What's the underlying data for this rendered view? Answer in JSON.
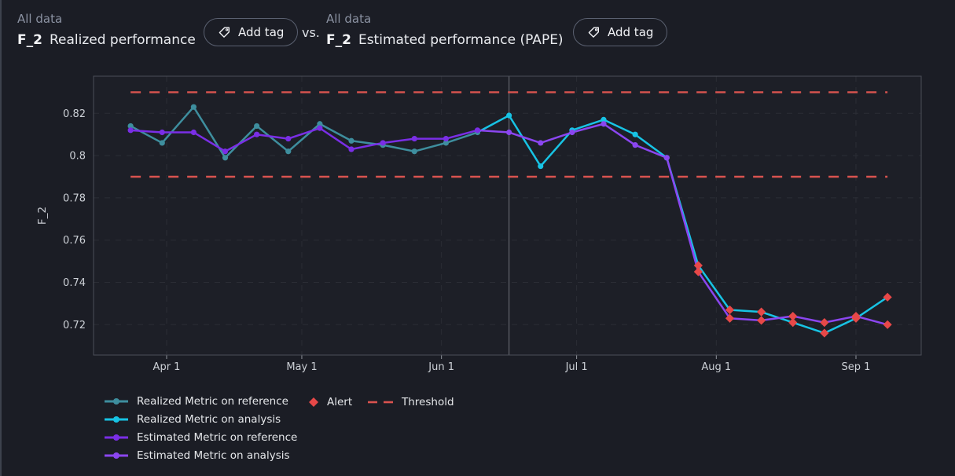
{
  "header": {
    "left": {
      "scope": "All data",
      "metric": "F_2",
      "title": "Realized performance",
      "add_tag_label": "Add tag"
    },
    "vs_label": "vs.",
    "right": {
      "scope": "All data",
      "metric": "F_2",
      "title": "Estimated performance (PAPE)",
      "add_tag_label": "Add tag"
    }
  },
  "chart_data": {
    "type": "line",
    "ylabel": "F_2",
    "ylim": [
      0.705,
      0.838
    ],
    "grid": true,
    "legend_position": "bottom-left",
    "y_ticks": [
      {
        "value": 0.82,
        "label": "0.82"
      },
      {
        "value": 0.8,
        "label": "0.8"
      },
      {
        "value": 0.78,
        "label": "0.78"
      },
      {
        "value": 0.76,
        "label": "0.76"
      },
      {
        "value": 0.74,
        "label": "0.74"
      },
      {
        "value": 0.72,
        "label": "0.72"
      }
    ],
    "x_ticks": [
      {
        "day": 8,
        "label": "Apr 1"
      },
      {
        "day": 38,
        "label": "May 1"
      },
      {
        "day": 69,
        "label": "Jun 1"
      },
      {
        "day": 99,
        "label": "Jul 1"
      },
      {
        "day": 130,
        "label": "Aug 1"
      },
      {
        "day": 161,
        "label": "Sep 1"
      }
    ],
    "divider_day": 84,
    "thresholds": {
      "upper": 0.83,
      "lower": 0.79,
      "color": "#d9534f",
      "span_days": [
        0,
        168
      ]
    },
    "alert_color": "#e74848",
    "series": [
      {
        "name": "Realized Metric on reference",
        "color": "#3e8e9e",
        "connect_to_prev": false,
        "points": [
          [
            0,
            0.814
          ],
          [
            7,
            0.806
          ],
          [
            14,
            0.823
          ],
          [
            21,
            0.799
          ],
          [
            28,
            0.814
          ],
          [
            35,
            0.802
          ],
          [
            42,
            0.815
          ],
          [
            49,
            0.807
          ],
          [
            56,
            0.805
          ],
          [
            63,
            0.802
          ],
          [
            70,
            0.806
          ],
          [
            77,
            0.811
          ]
        ]
      },
      {
        "name": "Realized Metric on analysis",
        "color": "#17c3e4",
        "connect_to_prev": true,
        "points": [
          [
            84,
            0.819
          ],
          [
            91,
            0.795
          ],
          [
            98,
            0.812
          ],
          [
            105,
            0.817
          ],
          [
            112,
            0.81
          ],
          [
            119,
            0.799
          ],
          [
            126,
            0.748,
            1
          ],
          [
            133,
            0.727,
            1
          ],
          [
            140,
            0.726,
            1
          ],
          [
            147,
            0.721,
            1
          ],
          [
            154,
            0.716,
            1
          ],
          [
            161,
            0.723,
            1
          ],
          [
            168,
            0.733,
            1
          ]
        ]
      },
      {
        "name": "Estimated Metric on reference",
        "color": "#7a2ee6",
        "connect_to_prev": false,
        "points": [
          [
            0,
            0.812
          ],
          [
            7,
            0.811
          ],
          [
            14,
            0.811
          ],
          [
            21,
            0.802
          ],
          [
            28,
            0.81
          ],
          [
            35,
            0.808
          ],
          [
            42,
            0.813
          ],
          [
            49,
            0.803
          ],
          [
            56,
            0.806
          ],
          [
            63,
            0.808
          ],
          [
            70,
            0.808
          ],
          [
            77,
            0.812
          ]
        ]
      },
      {
        "name": "Estimated Metric on analysis",
        "color": "#8b46f0",
        "connect_to_prev": true,
        "points": [
          [
            84,
            0.811
          ],
          [
            91,
            0.806
          ],
          [
            98,
            0.811
          ],
          [
            105,
            0.815
          ],
          [
            112,
            0.805
          ],
          [
            119,
            0.799
          ],
          [
            126,
            0.745,
            1
          ],
          [
            133,
            0.723,
            1
          ],
          [
            140,
            0.722,
            1
          ],
          [
            147,
            0.724,
            1
          ],
          [
            154,
            0.721,
            1
          ],
          [
            161,
            0.724,
            1
          ],
          [
            168,
            0.72,
            1
          ]
        ]
      }
    ]
  },
  "legend": [
    {
      "label": "Realized Metric on reference",
      "color": "#3e8e9e",
      "swatch": "line"
    },
    {
      "label": "Realized Metric on analysis",
      "color": "#17c3e4",
      "swatch": "line"
    },
    {
      "label": "Estimated Metric on reference",
      "color": "#7a2ee6",
      "swatch": "line"
    },
    {
      "label": "Estimated Metric on analysis",
      "color": "#8b46f0",
      "swatch": "line"
    },
    {
      "label": "Alert",
      "color": "#e74848",
      "swatch": "diamond"
    },
    {
      "label": "Threshold",
      "color": "#d9534f",
      "swatch": "dash"
    }
  ]
}
